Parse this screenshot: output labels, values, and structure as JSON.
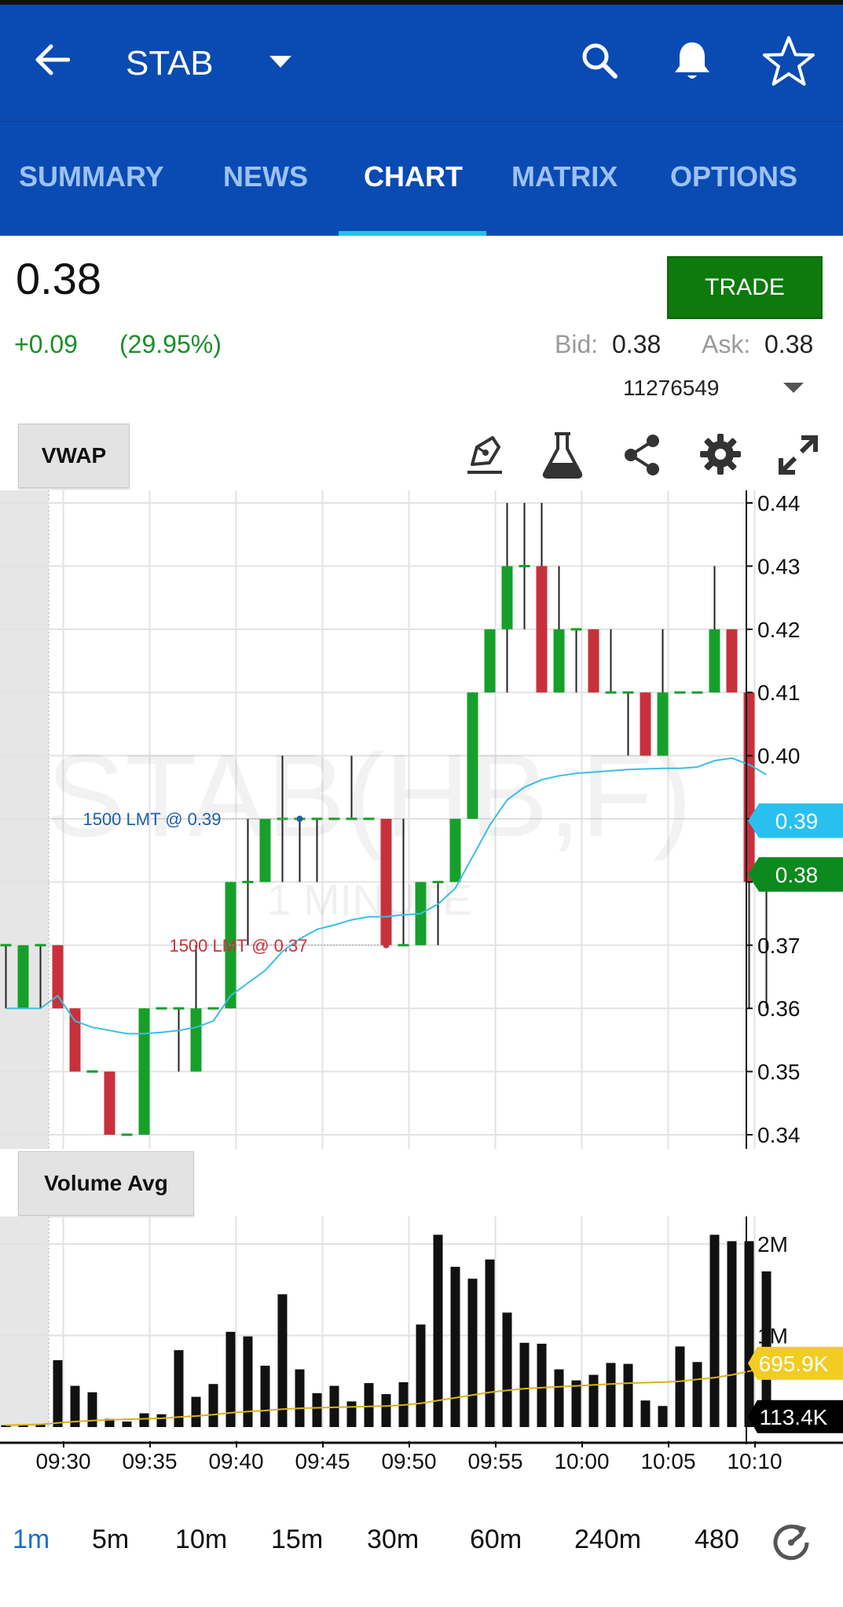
{
  "header": {
    "ticker": "STAB",
    "icons": {
      "back": "arrow-left-icon",
      "dropdown": "caret-down-icon",
      "search": "search-icon",
      "alerts": "bell-icon",
      "favorite": "star-icon"
    }
  },
  "tabs": [
    {
      "label": "SUMMARY",
      "active": false
    },
    {
      "label": "NEWS",
      "active": false
    },
    {
      "label": "CHART",
      "active": true
    },
    {
      "label": "MATRIX",
      "active": false
    },
    {
      "label": "OPTIONS",
      "active": false
    }
  ],
  "quote": {
    "last": "0.38",
    "change": "+0.09",
    "change_pct": "(29.95%)",
    "bid_label": "Bid:",
    "bid": "0.38",
    "ask_label": "Ask:",
    "ask": "0.38",
    "account": "11276549",
    "trade_label": "TRADE"
  },
  "chart_toolbar": {
    "study_label": "VWAP",
    "icons": [
      "draw-pen-icon",
      "flask-icon",
      "share-icon",
      "settings-gear-icon",
      "expand-icon"
    ]
  },
  "volume_panel": {
    "study_label": "Volume Avg"
  },
  "timeframes": [
    {
      "label": "1m",
      "active": true
    },
    {
      "label": "5m",
      "active": false
    },
    {
      "label": "10m",
      "active": false
    },
    {
      "label": "15m",
      "active": false
    },
    {
      "label": "30m",
      "active": false
    },
    {
      "label": "60m",
      "active": false
    },
    {
      "label": "240m",
      "active": false
    },
    {
      "label": "480",
      "active": false
    }
  ],
  "colors": {
    "up": "#16a02a",
    "down": "#c8313b",
    "vwap": "#3bbde6",
    "volume_avg": "#d9b21a",
    "brand": "#0a4bb3"
  },
  "chart_data": [
    {
      "type": "candlestick",
      "watermark": "STAB(HB,F)",
      "watermark_sub": "1 MINUTE",
      "price_axis": [
        "0.44",
        "0.43",
        "0.42",
        "0.41",
        "0.40",
        "0.39",
        "0.38",
        "0.37",
        "0.36",
        "0.35",
        "0.34"
      ],
      "ylim": [
        0.34,
        0.44
      ],
      "time_axis": [
        "09:30",
        "09:35",
        "09:40",
        "09:45",
        "09:50",
        "09:55",
        "10:00",
        "10:05",
        "10:10"
      ],
      "candles": [
        {
          "t": "09:27",
          "o": 0.37,
          "h": 0.37,
          "l": 0.36,
          "c": 0.37
        },
        {
          "t": "09:28",
          "o": 0.36,
          "h": 0.37,
          "l": 0.36,
          "c": 0.37
        },
        {
          "t": "09:29",
          "o": 0.37,
          "h": 0.37,
          "l": 0.36,
          "c": 0.37
        },
        {
          "t": "09:30",
          "o": 0.37,
          "h": 0.37,
          "l": 0.36,
          "c": 0.36
        },
        {
          "t": "09:31",
          "o": 0.36,
          "h": 0.36,
          "l": 0.35,
          "c": 0.35
        },
        {
          "t": "09:32",
          "o": 0.35,
          "h": 0.35,
          "l": 0.35,
          "c": 0.35
        },
        {
          "t": "09:33",
          "o": 0.35,
          "h": 0.35,
          "l": 0.34,
          "c": 0.34
        },
        {
          "t": "09:34",
          "o": 0.34,
          "h": 0.34,
          "l": 0.34,
          "c": 0.34
        },
        {
          "t": "09:35",
          "o": 0.34,
          "h": 0.36,
          "l": 0.34,
          "c": 0.36
        },
        {
          "t": "09:36",
          "o": 0.36,
          "h": 0.36,
          "l": 0.36,
          "c": 0.36
        },
        {
          "t": "09:37",
          "o": 0.36,
          "h": 0.36,
          "l": 0.35,
          "c": 0.36
        },
        {
          "t": "09:38",
          "o": 0.35,
          "h": 0.37,
          "l": 0.35,
          "c": 0.36
        },
        {
          "t": "09:39",
          "o": 0.36,
          "h": 0.36,
          "l": 0.36,
          "c": 0.36
        },
        {
          "t": "09:40",
          "o": 0.36,
          "h": 0.38,
          "l": 0.36,
          "c": 0.38
        },
        {
          "t": "09:41",
          "o": 0.38,
          "h": 0.39,
          "l": 0.37,
          "c": 0.38
        },
        {
          "t": "09:42",
          "o": 0.38,
          "h": 0.39,
          "l": 0.38,
          "c": 0.39
        },
        {
          "t": "09:43",
          "o": 0.39,
          "h": 0.4,
          "l": 0.38,
          "c": 0.39
        },
        {
          "t": "09:44",
          "o": 0.39,
          "h": 0.39,
          "l": 0.38,
          "c": 0.39
        },
        {
          "t": "09:45",
          "o": 0.39,
          "h": 0.39,
          "l": 0.38,
          "c": 0.39
        },
        {
          "t": "09:46",
          "o": 0.39,
          "h": 0.39,
          "l": 0.39,
          "c": 0.39
        },
        {
          "t": "09:47",
          "o": 0.39,
          "h": 0.4,
          "l": 0.39,
          "c": 0.39
        },
        {
          "t": "09:48",
          "o": 0.39,
          "h": 0.39,
          "l": 0.39,
          "c": 0.39
        },
        {
          "t": "09:49",
          "o": 0.39,
          "h": 0.39,
          "l": 0.37,
          "c": 0.37
        },
        {
          "t": "09:50",
          "o": 0.37,
          "h": 0.39,
          "l": 0.37,
          "c": 0.37
        },
        {
          "t": "09:51",
          "o": 0.37,
          "h": 0.38,
          "l": 0.37,
          "c": 0.38
        },
        {
          "t": "09:52",
          "o": 0.38,
          "h": 0.38,
          "l": 0.37,
          "c": 0.38
        },
        {
          "t": "09:53",
          "o": 0.38,
          "h": 0.39,
          "l": 0.38,
          "c": 0.39
        },
        {
          "t": "09:54",
          "o": 0.39,
          "h": 0.41,
          "l": 0.39,
          "c": 0.41
        },
        {
          "t": "09:55",
          "o": 0.41,
          "h": 0.42,
          "l": 0.41,
          "c": 0.42
        },
        {
          "t": "09:56",
          "o": 0.42,
          "h": 0.44,
          "l": 0.41,
          "c": 0.43
        },
        {
          "t": "09:57",
          "o": 0.43,
          "h": 0.44,
          "l": 0.42,
          "c": 0.43
        },
        {
          "t": "09:58",
          "o": 0.43,
          "h": 0.44,
          "l": 0.41,
          "c": 0.41
        },
        {
          "t": "09:59",
          "o": 0.41,
          "h": 0.43,
          "l": 0.41,
          "c": 0.42
        },
        {
          "t": "10:00",
          "o": 0.42,
          "h": 0.42,
          "l": 0.41,
          "c": 0.42
        },
        {
          "t": "10:01",
          "o": 0.42,
          "h": 0.42,
          "l": 0.41,
          "c": 0.41
        },
        {
          "t": "10:02",
          "o": 0.41,
          "h": 0.42,
          "l": 0.41,
          "c": 0.41
        },
        {
          "t": "10:03",
          "o": 0.41,
          "h": 0.41,
          "l": 0.4,
          "c": 0.41
        },
        {
          "t": "10:04",
          "o": 0.41,
          "h": 0.41,
          "l": 0.4,
          "c": 0.4
        },
        {
          "t": "10:05",
          "o": 0.4,
          "h": 0.42,
          "l": 0.4,
          "c": 0.41
        },
        {
          "t": "10:06",
          "o": 0.41,
          "h": 0.41,
          "l": 0.41,
          "c": 0.41
        },
        {
          "t": "10:07",
          "o": 0.41,
          "h": 0.41,
          "l": 0.41,
          "c": 0.41
        },
        {
          "t": "10:08",
          "o": 0.41,
          "h": 0.43,
          "l": 0.41,
          "c": 0.42
        },
        {
          "t": "10:09",
          "o": 0.42,
          "h": 0.42,
          "l": 0.41,
          "c": 0.41
        },
        {
          "t": "10:10",
          "o": 0.41,
          "h": 0.41,
          "l": 0.36,
          "c": 0.38
        },
        {
          "t": "10:11",
          "o": 0.38,
          "h": 0.38,
          "l": 0.36,
          "c": 0.38
        }
      ],
      "vwap": [
        0.36,
        0.36,
        0.36,
        0.362,
        0.358,
        0.357,
        0.3565,
        0.356,
        0.356,
        0.3562,
        0.3565,
        0.357,
        0.358,
        0.362,
        0.364,
        0.366,
        0.369,
        0.371,
        0.3725,
        0.3732,
        0.374,
        0.3745,
        0.3745,
        0.3748,
        0.375,
        0.3765,
        0.379,
        0.384,
        0.389,
        0.393,
        0.395,
        0.3962,
        0.3968,
        0.3972,
        0.3974,
        0.3976,
        0.3978,
        0.3979,
        0.398,
        0.398,
        0.3982,
        0.3992,
        0.3996,
        0.3986,
        0.397
      ],
      "orders": [
        {
          "label": "1500 LMT @ 0.39",
          "price": 0.39,
          "color": "#1f5fa8",
          "at": "09:44"
        },
        {
          "label": "1500 LMT @ 0.37",
          "price": 0.37,
          "color": "#c8313b",
          "at": "09:49"
        }
      ],
      "price_tags": [
        {
          "label": "0.39",
          "price": 0.3897,
          "color": "#29c0f0"
        },
        {
          "label": "0.38",
          "price": 0.3812,
          "color": "#0c8a1e"
        }
      ]
    },
    {
      "type": "bar",
      "title": "Volume Avg",
      "volume_axis": [
        "2M",
        "1M"
      ],
      "ylim": [
        0,
        2300000
      ],
      "volumes": [
        20000,
        30000,
        30000,
        730000,
        450000,
        380000,
        90000,
        60000,
        150000,
        140000,
        840000,
        330000,
        470000,
        1040000,
        990000,
        670000,
        1450000,
        630000,
        370000,
        450000,
        280000,
        480000,
        360000,
        490000,
        1120000,
        2100000,
        1750000,
        1620000,
        1830000,
        1250000,
        920000,
        910000,
        630000,
        510000,
        570000,
        700000,
        690000,
        290000,
        230000,
        880000,
        710000,
        2100000,
        2030000,
        2030000,
        1700000
      ],
      "volume_avg": [
        20000,
        25000,
        30000,
        45000,
        60000,
        70000,
        80000,
        85000,
        90000,
        95000,
        110000,
        120000,
        135000,
        155000,
        170000,
        180000,
        195000,
        205000,
        210000,
        215000,
        220000,
        225000,
        230000,
        240000,
        260000,
        290000,
        320000,
        350000,
        380000,
        400000,
        420000,
        430000,
        440000,
        450000,
        460000,
        470000,
        480000,
        485000,
        490000,
        500000,
        520000,
        540000,
        570000,
        610000,
        650000
      ],
      "tags": [
        {
          "label": "695.9K",
          "value": 695900,
          "color": "#f2cc22",
          "text_color": "#ffffff"
        },
        {
          "label": "113.4K",
          "value": 113400,
          "color": "#000000",
          "text_color": "#ffffff"
        }
      ]
    }
  ]
}
